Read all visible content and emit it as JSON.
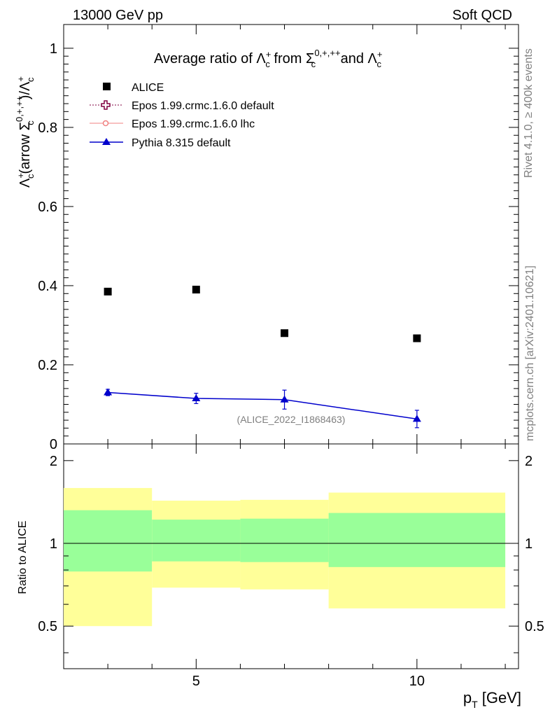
{
  "header": {
    "left": "13000 GeV pp",
    "right": "Soft QCD"
  },
  "side": {
    "rivet": "Rivet 4.1.0, ≥ 400k events",
    "mcplots": "mcplots.cern.ch [arXiv:2401.10621]"
  },
  "colors": {
    "alice": "#000000",
    "epos_default": "#800040",
    "epos_lhc": "#f08080",
    "pythia": "#0000cc",
    "band_outer": "#ffff99",
    "band_inner": "#99ff99"
  },
  "chart_data": [
    {
      "type": "scatter",
      "title": "Average ratio of Λ_c^+ from Σ_c^{0,+,++} and Λ_c^+",
      "ylabel": "Λ_c^+(arrow Σ_c^{0,+,++})/Λ_c^+",
      "xlabel": "p_T [GeV]",
      "xlim": [
        2,
        12.3
      ],
      "ylim": [
        0,
        1.06
      ],
      "yticks": [
        "0",
        "0.2",
        "0.4",
        "0.6",
        "0.8",
        "1"
      ],
      "analysis_label": "(ALICE_2022_I1868463)",
      "legend": [
        "ALICE",
        "Epos 1.99.crmc.1.6.0 default",
        "Epos 1.99.crmc.1.6.0 lhc",
        "Pythia 8.315 default"
      ],
      "series": [
        {
          "name": "ALICE",
          "x": [
            3,
            5,
            7,
            10
          ],
          "y": [
            0.385,
            0.39,
            0.28,
            0.267
          ]
        },
        {
          "name": "Pythia 8.315 default",
          "x": [
            3,
            5,
            7,
            10
          ],
          "y": [
            0.13,
            0.115,
            0.112,
            0.063
          ],
          "err": [
            0.008,
            0.013,
            0.024,
            0.022
          ]
        }
      ]
    },
    {
      "type": "area",
      "ylabel": "Ratio to ALICE",
      "xlabel": "p_T [GeV]",
      "ylim": [
        0.35,
        2.3
      ],
      "yticks": [
        "0.5",
        "1",
        "2"
      ],
      "xticks": [
        "5",
        "10"
      ],
      "bins": [
        {
          "lo": 2,
          "hi": 4,
          "outer": [
            0.5,
            1.59
          ],
          "inner": [
            0.79,
            1.32
          ]
        },
        {
          "lo": 4,
          "hi": 6,
          "outer": [
            0.69,
            1.43
          ],
          "inner": [
            0.86,
            1.22
          ]
        },
        {
          "lo": 6,
          "hi": 8,
          "outer": [
            0.68,
            1.44
          ],
          "inner": [
            0.855,
            1.23
          ]
        },
        {
          "lo": 8,
          "hi": 12,
          "outer": [
            0.58,
            1.53
          ],
          "inner": [
            0.82,
            1.29
          ]
        }
      ],
      "reference": 1
    }
  ]
}
